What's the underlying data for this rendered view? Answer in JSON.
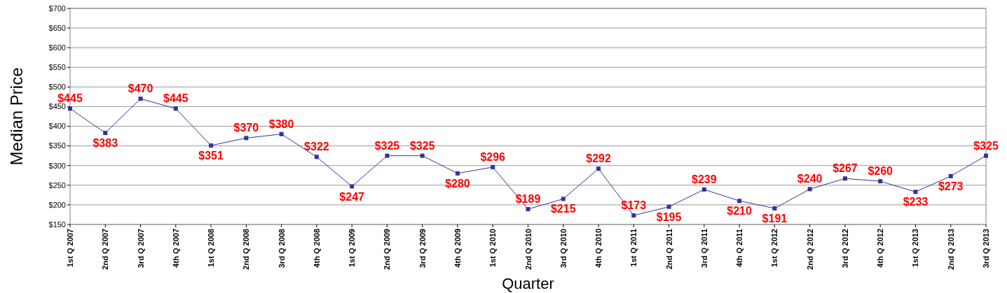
{
  "chart_data": {
    "type": "line",
    "xlabel": "Quarter",
    "ylabel": "Median Price",
    "categories": [
      "1st Q 2007",
      "2nd Q 2007",
      "3rd Q 2007",
      "4th Q 2007",
      "1st Q 2008",
      "2nd Q 2008",
      "3rd Q 2008",
      "4th Q 2008",
      "1st Q 2009",
      "2nd Q 2009",
      "3rd Q 2009",
      "4th Q 2009",
      "1st Q 2010",
      "2nd Q 2010",
      "3rd Q 2010",
      "4th Q 2010",
      "1st Q 2011",
      "2nd Q 2011",
      "3rd Q 2011",
      "4th Q 2011",
      "1st Q 2012",
      "2nd Q 2012",
      "3rd Q 2012",
      "4th Q 2012",
      "1st Q 2013",
      "2nd Q 2013",
      "3rd Q 2013"
    ],
    "series": [
      {
        "color": "#333399",
        "values": [
          445,
          383,
          470,
          445,
          351,
          370,
          380,
          322,
          247,
          325,
          325,
          280,
          296,
          189,
          215,
          292,
          173,
          195,
          239,
          210,
          191,
          240,
          267,
          260,
          233,
          273,
          325
        ]
      }
    ],
    "ylim": [
      150,
      700
    ],
    "yticks": [
      {
        "value": 150,
        "label": "$150"
      },
      {
        "value": 200,
        "label": "$200"
      },
      {
        "value": 250,
        "label": "$250"
      },
      {
        "value": 300,
        "label": "$300"
      },
      {
        "value": 350,
        "label": "$350"
      },
      {
        "value": 400,
        "label": "$400"
      },
      {
        "value": 450,
        "label": "$450"
      },
      {
        "value": 500,
        "label": "$500"
      },
      {
        "value": 550,
        "label": "$550"
      },
      {
        "value": 600,
        "label": "$600"
      },
      {
        "value": 650,
        "label": "$650"
      },
      {
        "value": 700,
        "label": "$700"
      }
    ],
    "value_labels": [
      "$445",
      "$383",
      "$470",
      "$445",
      "$351",
      "$370",
      "$380",
      "$322",
      "$247",
      "$325",
      "$325",
      "$280",
      "$296",
      "$189",
      "$215",
      "$292",
      "$173",
      "$195",
      "$239",
      "$210",
      "$191",
      "$240",
      "$267",
      "$260",
      "$233",
      "$273",
      "$325"
    ],
    "grid": "y",
    "marker": "square",
    "line_style": "solid"
  }
}
